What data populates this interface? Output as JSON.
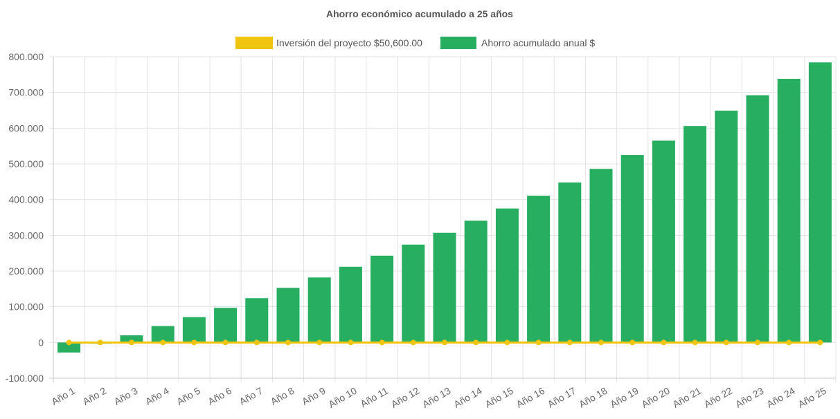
{
  "chart_data": {
    "type": "bar",
    "title": "Ahorro económico acumulado a 25 años",
    "categories": [
      "Año 1",
      "Año 2",
      "Año 3",
      "Año 4",
      "Año 5",
      "Año 6",
      "Año 7",
      "Año 8",
      "Año 9",
      "Año 10",
      "Año 11",
      "Año 12",
      "Año 13",
      "Año 14",
      "Año 15",
      "Año 16",
      "Año 17",
      "Año 18",
      "Año 19",
      "Año 20",
      "Año 21",
      "Año 22",
      "Año 23",
      "Año 24",
      "Año 25"
    ],
    "series": [
      {
        "name": "Inversión del proyecto $50,600.00",
        "type": "line",
        "color": "#F1C40F",
        "values": [
          0,
          0,
          0,
          0,
          0,
          0,
          0,
          0,
          0,
          0,
          0,
          0,
          0,
          0,
          0,
          0,
          0,
          0,
          0,
          0,
          0,
          0,
          0,
          0,
          0
        ]
      },
      {
        "name": "Ahorro acumulado anual $",
        "type": "bar",
        "color": "#27AE60",
        "values": [
          -28000,
          -3000,
          20000,
          46000,
          71000,
          97000,
          124000,
          153000,
          182000,
          212000,
          243000,
          274000,
          307000,
          341000,
          375000,
          411000,
          448000,
          486000,
          525000,
          565000,
          606000,
          649000,
          692000,
          738000,
          784000
        ]
      }
    ],
    "yticks": [
      "-100.000",
      "0",
      "100.000",
      "200.000",
      "300.000",
      "400.000",
      "500.000",
      "600.000",
      "700.000",
      "800.000"
    ],
    "ylim": [
      -100000,
      800000
    ],
    "xlabel": "",
    "ylabel": "",
    "grid": true,
    "legend_position": "top-center"
  }
}
